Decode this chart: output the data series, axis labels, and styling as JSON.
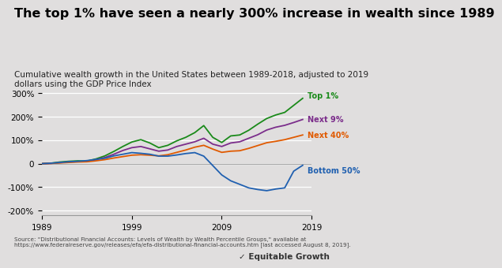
{
  "title": "The top 1% have seen a nearly 300% increase in wealth since 1989",
  "subtitle": "Cumulative wealth growth in the United States between 1989-2018, adjusted to 2019\ndollars using the GDP Price Index",
  "source_text": "Source: \"Distributional Financial Accounts: Levels of Wealth by Wealth Percentile Groups,\" available at\nhttps://www.federalreserve.gov/releases/efa/efa-distributional-financial-accounts.htm [last accessed August 8, 2019].",
  "background_color": "#e0dede",
  "plot_bg_color": "#e0dede",
  "title_fontsize": 11.5,
  "subtitle_fontsize": 7.5,
  "source_fontsize": 5.2,
  "colors": {
    "top1": "#1a8a1a",
    "next9": "#7b2d8b",
    "next40": "#e05a00",
    "bottom50": "#2060b0"
  },
  "labels": {
    "top1": "Top 1%",
    "next9": "Next 9%",
    "next40": "Next 40%",
    "bottom50": "Bottom 50%"
  },
  "ylim": [
    -220,
    340
  ],
  "yticks": [
    -200,
    -100,
    0,
    100,
    200,
    300
  ],
  "xlim": [
    1989,
    2019
  ],
  "xticks": [
    1989,
    1999,
    2009,
    2019
  ],
  "top1_years": [
    1989,
    1990,
    1991,
    1992,
    1993,
    1994,
    1995,
    1996,
    1997,
    1998,
    1999,
    2000,
    2001,
    2002,
    2003,
    2004,
    2005,
    2006,
    2007,
    2008,
    2009,
    2010,
    2011,
    2012,
    2013,
    2014,
    2015,
    2016,
    2017,
    2018
  ],
  "top1_vals": [
    0,
    2,
    7,
    10,
    12,
    11,
    20,
    33,
    52,
    73,
    92,
    102,
    88,
    68,
    78,
    97,
    112,
    132,
    162,
    112,
    90,
    118,
    122,
    142,
    168,
    192,
    207,
    218,
    248,
    278
  ],
  "next9_years": [
    1989,
    1990,
    1991,
    1992,
    1993,
    1994,
    1995,
    1996,
    1997,
    1998,
    1999,
    2000,
    2001,
    2002,
    2003,
    2004,
    2005,
    2006,
    2007,
    2008,
    2009,
    2010,
    2011,
    2012,
    2013,
    2014,
    2015,
    2016,
    2017,
    2018
  ],
  "next9_vals": [
    0,
    1,
    4,
    7,
    9,
    9,
    17,
    26,
    40,
    56,
    68,
    73,
    63,
    53,
    58,
    73,
    83,
    93,
    108,
    83,
    73,
    88,
    93,
    108,
    123,
    143,
    155,
    163,
    175,
    188
  ],
  "next40_years": [
    1989,
    1990,
    1991,
    1992,
    1993,
    1994,
    1995,
    1996,
    1997,
    1998,
    1999,
    2000,
    2001,
    2002,
    2003,
    2004,
    2005,
    2006,
    2007,
    2008,
    2009,
    2010,
    2011,
    2012,
    2013,
    2014,
    2015,
    2016,
    2017,
    2018
  ],
  "next40_vals": [
    0,
    1,
    3,
    5,
    7,
    8,
    12,
    17,
    24,
    30,
    36,
    38,
    36,
    33,
    38,
    48,
    58,
    70,
    78,
    62,
    48,
    53,
    55,
    65,
    77,
    89,
    95,
    102,
    112,
    122
  ],
  "bottom50_years": [
    1989,
    1990,
    1991,
    1992,
    1993,
    1994,
    1995,
    1996,
    1997,
    1998,
    1999,
    2000,
    2001,
    2002,
    2003,
    2004,
    2005,
    2006,
    2007,
    2008,
    2009,
    2010,
    2011,
    2012,
    2013,
    2014,
    2015,
    2016,
    2017,
    2018
  ],
  "bottom50_vals": [
    0,
    2,
    5,
    8,
    10,
    13,
    18,
    23,
    33,
    40,
    47,
    44,
    40,
    32,
    32,
    37,
    43,
    47,
    32,
    -8,
    -48,
    -73,
    -88,
    -103,
    -110,
    -115,
    -108,
    -103,
    -32,
    -7
  ]
}
